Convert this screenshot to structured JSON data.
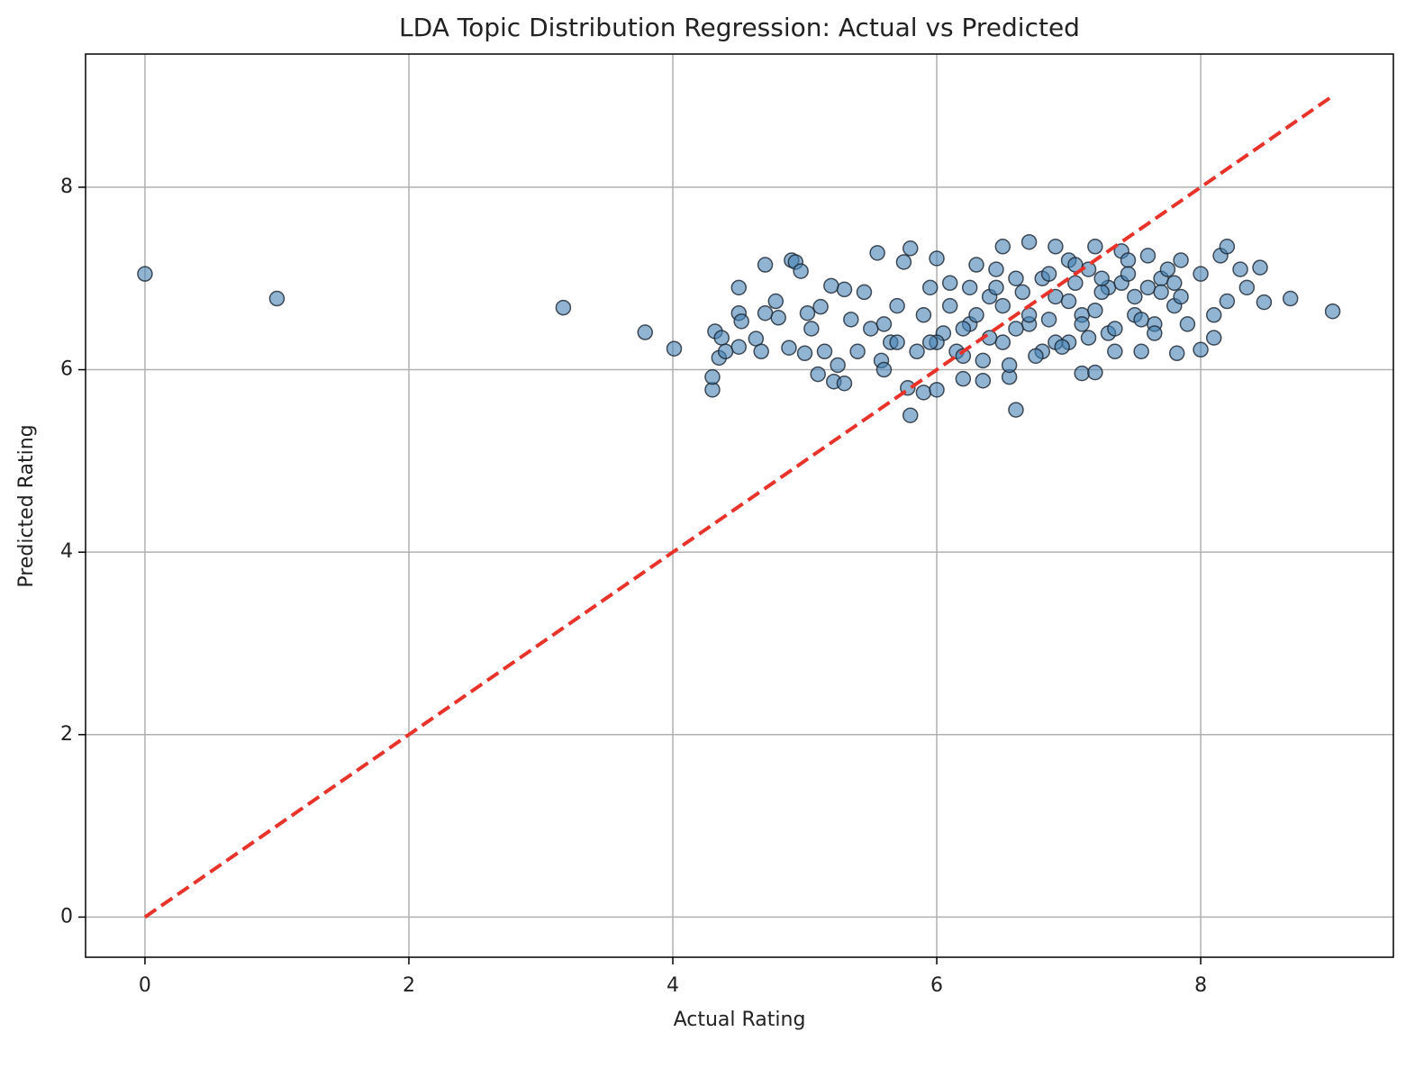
{
  "chart_data": {
    "type": "scatter",
    "title": "LDA Topic Distribution Regression: Actual vs Predicted",
    "x_label": "Actual Rating",
    "y_label": "Predicted Rating",
    "xlim": [
      -0.45,
      9.46
    ],
    "ylim": [
      -0.44,
      9.46
    ],
    "xticks": [
      0,
      2,
      4,
      6,
      8
    ],
    "yticks": [
      0,
      2,
      4,
      6,
      8
    ],
    "grid": true,
    "series": [
      {
        "color": "#4682b4",
        "edgecolor": "#1a2430",
        "alpha": 0.6,
        "x": [
          0,
          1,
          3.17,
          3.79,
          4.01,
          4.3,
          4.3,
          4.32,
          4.35,
          4.37,
          4.4,
          4.5,
          4.5,
          4.52,
          4.5,
          4.63,
          4.67,
          4.7,
          4.7,
          4.78,
          4.8,
          4.88,
          4.9,
          4.93,
          4.97,
          5.0,
          5.02,
          5.05,
          5.1,
          5.12,
          5.15,
          5.2,
          5.22,
          5.25,
          5.3,
          5.3,
          5.35,
          5.4,
          5.45,
          5.5,
          5.55,
          5.58,
          5.6,
          5.65,
          5.7,
          5.75,
          5.78,
          5.8,
          5.8,
          5.85,
          5.9,
          5.95,
          6.0,
          6.0,
          6.05,
          6.1,
          6.15,
          6.2,
          6.25,
          6.3,
          6.35,
          6.4,
          6.5,
          6.5,
          6.55,
          6.6,
          6.6,
          6.7,
          6.7,
          6.8,
          6.9,
          6.9,
          7.0,
          7.0,
          7.1,
          7.1,
          7.2,
          7.2,
          7.3,
          7.35,
          7.4,
          7.5,
          7.55,
          7.6,
          7.65,
          7.7,
          7.8,
          7.82,
          7.85,
          7.9,
          8.0,
          8.0,
          8.1,
          8.1,
          8.15,
          8.2,
          8.2,
          8.3,
          8.35,
          8.45,
          8.48,
          8.68,
          9.0,
          5.9,
          6.1,
          6.2,
          6.3,
          6.4,
          6.45,
          6.5,
          6.6,
          6.65,
          6.7,
          6.8,
          6.85,
          6.9,
          7.0,
          7.05,
          7.1,
          7.15,
          7.2,
          7.25,
          7.3,
          7.4,
          7.45,
          7.5,
          7.6,
          7.7,
          7.75,
          7.8,
          6.0,
          6.2,
          6.35,
          6.55,
          6.75,
          6.95,
          7.15,
          7.35,
          7.55,
          7.65,
          5.7,
          5.6,
          5.95,
          6.25,
          6.45,
          6.85,
          7.05,
          7.25,
          7.45,
          7.85
        ],
        "y": [
          7.05,
          6.78,
          6.68,
          6.41,
          6.23,
          5.78,
          5.92,
          6.42,
          6.13,
          6.35,
          6.2,
          6.62,
          6.9,
          6.53,
          6.25,
          6.34,
          6.2,
          7.15,
          6.62,
          6.75,
          6.57,
          6.24,
          7.2,
          7.18,
          7.08,
          6.18,
          6.62,
          6.45,
          5.95,
          6.69,
          6.2,
          6.92,
          5.87,
          6.05,
          5.85,
          6.88,
          6.55,
          6.2,
          6.85,
          6.45,
          7.28,
          6.1,
          6.0,
          6.3,
          6.7,
          7.18,
          5.8,
          5.5,
          7.33,
          6.2,
          5.75,
          6.9,
          5.78,
          7.22,
          6.4,
          6.7,
          6.2,
          5.9,
          6.5,
          7.15,
          5.88,
          6.8,
          7.35,
          6.3,
          5.92,
          5.56,
          7.0,
          7.4,
          6.5,
          6.2,
          7.35,
          6.8,
          6.3,
          7.2,
          5.96,
          6.6,
          5.97,
          7.35,
          6.9,
          6.2,
          7.3,
          6.8,
          6.2,
          7.25,
          6.5,
          7.0,
          6.7,
          6.18,
          7.2,
          6.5,
          6.22,
          7.05,
          6.35,
          6.6,
          7.25,
          7.35,
          6.75,
          7.1,
          6.9,
          7.12,
          6.74,
          6.78,
          6.64,
          6.6,
          6.95,
          6.45,
          6.6,
          6.35,
          6.9,
          6.7,
          6.45,
          6.85,
          6.6,
          7.0,
          6.55,
          6.3,
          6.75,
          6.95,
          6.5,
          7.1,
          6.65,
          6.85,
          6.4,
          6.95,
          7.2,
          6.6,
          6.9,
          6.85,
          7.1,
          6.95,
          6.3,
          6.15,
          6.1,
          6.05,
          6.15,
          6.25,
          6.35,
          6.45,
          6.55,
          6.4,
          6.3,
          6.5,
          6.3,
          6.9,
          7.1,
          7.05,
          7.15,
          7.0,
          7.05,
          6.8
        ],
        "values_note_free": null
      }
    ],
    "reference_line": {
      "x": [
        0,
        9
      ],
      "y": [
        0,
        9
      ],
      "color": "#e8332a"
    }
  }
}
